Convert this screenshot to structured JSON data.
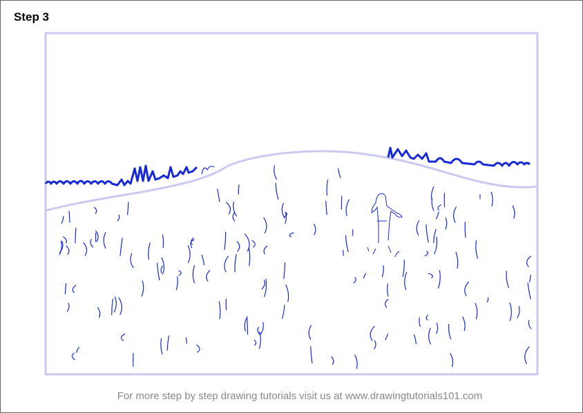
{
  "header": {
    "title": "Step 3"
  },
  "footer": {
    "text": "For more step by step drawing tutorials visit us at www.drawingtutorials101.com"
  }
}
